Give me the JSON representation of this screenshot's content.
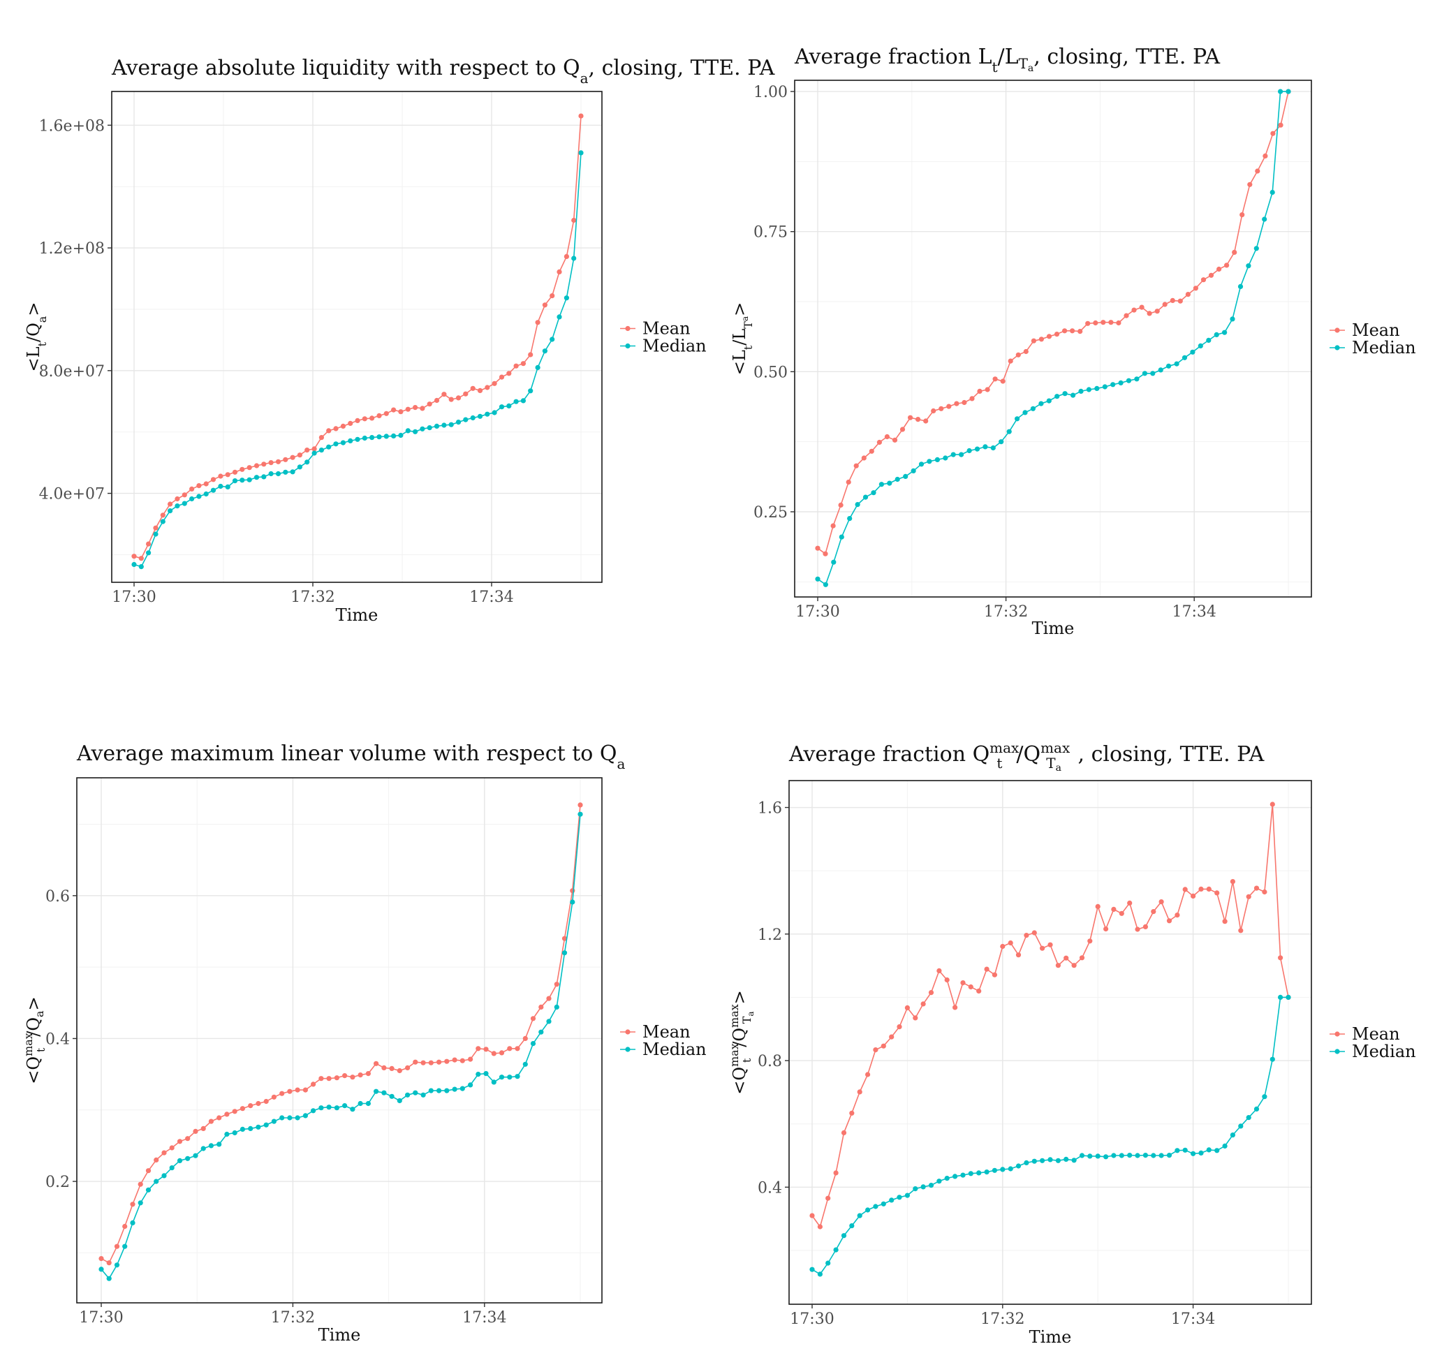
{
  "colors": {
    "mean": "#F8766D",
    "median": "#00BFC4"
  },
  "chart_data": [
    {
      "type": "line",
      "title": "Average absolute liquidity with respect to Q",
      "title_sub": "a",
      "title_rest": ", closing, TTE. PA",
      "xlabel": "Time",
      "ylabel": "<Lt/Qa>",
      "x_ticks": [
        "17:30",
        "17:32",
        "17:34"
      ],
      "y_ticks": [
        "4.0e+07",
        "8.0e+07",
        "1.2e+08",
        "1.6e+08"
      ],
      "y_tick_values": [
        40000000,
        80000000,
        120000000,
        160000000
      ],
      "ylim": [
        11000000,
        171000000
      ],
      "legend": [
        "Mean",
        "Median"
      ],
      "series": [
        {
          "name": "Mean",
          "values": [
            19500000,
            18800000,
            23500000,
            28700000,
            32900000,
            36500000,
            38200000,
            39500000,
            41400000,
            42500000,
            43100000,
            44500000,
            45600000,
            46100000,
            46900000,
            47800000,
            48400000,
            49000000,
            49500000,
            50000000,
            50300000,
            51000000,
            51700000,
            52500000,
            54100000,
            54500000,
            58200000,
            60400000,
            61100000,
            61900000,
            62800000,
            63700000,
            64300000,
            64500000,
            65300000,
            66000000,
            67200000,
            66600000,
            67400000,
            68000000,
            67700000,
            69100000,
            70300000,
            72300000,
            70600000,
            71100000,
            72400000,
            74200000,
            73500000,
            74500000,
            75800000,
            77900000,
            79100000,
            81500000,
            82300000,
            85200000,
            95700000,
            101400000,
            104400000,
            112200000,
            117200000,
            129000000,
            163000000
          ]
        },
        {
          "name": "Median",
          "values": [
            16800000,
            16100000,
            20600000,
            26700000,
            30800000,
            34300000,
            35900000,
            36700000,
            38200000,
            39000000,
            39800000,
            41000000,
            42300000,
            42100000,
            44100000,
            44300000,
            44400000,
            45200000,
            45400000,
            46400000,
            46400000,
            46900000,
            47000000,
            48600000,
            50200000,
            53100000,
            54100000,
            55100000,
            56100000,
            56500000,
            57100000,
            57600000,
            58000000,
            58200000,
            58400000,
            58600000,
            58700000,
            58900000,
            60400000,
            60100000,
            61000000,
            61400000,
            61900000,
            62200000,
            62400000,
            63200000,
            64000000,
            64600000,
            65100000,
            65800000,
            66300000,
            68200000,
            68500000,
            69900000,
            70200000,
            73400000,
            81000000,
            86400000,
            90200000,
            97500000,
            103700000,
            116600000,
            151000000
          ]
        }
      ]
    },
    {
      "type": "line",
      "title": "Average fraction L",
      "title_sub": "t",
      "title_mid": "/L",
      "title_sub2": "T",
      "title_sub3": "a",
      "title_rest": ", closing, TTE. PA",
      "xlabel": "Time",
      "ylabel": "<Lt/LTa>",
      "x_ticks": [
        "17:30",
        "17:32",
        "17:34"
      ],
      "y_ticks": [
        "0.25",
        "0.50",
        "0.75",
        "1.00"
      ],
      "y_tick_values": [
        0.25,
        0.5,
        0.75,
        1.0
      ],
      "ylim": [
        0.098,
        1.02
      ],
      "legend": [
        "Mean",
        "Median"
      ],
      "series": [
        {
          "name": "Mean",
          "values": [
            0.185,
            0.175,
            0.225,
            0.262,
            0.303,
            0.332,
            0.346,
            0.358,
            0.374,
            0.384,
            0.378,
            0.397,
            0.418,
            0.415,
            0.412,
            0.43,
            0.434,
            0.438,
            0.443,
            0.445,
            0.452,
            0.465,
            0.468,
            0.487,
            0.483,
            0.519,
            0.53,
            0.536,
            0.555,
            0.558,
            0.563,
            0.567,
            0.573,
            0.573,
            0.572,
            0.586,
            0.587,
            0.588,
            0.588,
            0.587,
            0.6,
            0.61,
            0.615,
            0.604,
            0.608,
            0.62,
            0.627,
            0.626,
            0.638,
            0.649,
            0.664,
            0.672,
            0.683,
            0.69,
            0.713,
            0.78,
            0.834,
            0.858,
            0.885,
            0.925,
            0.94,
            1.0
          ]
        },
        {
          "name": "Median",
          "values": [
            0.13,
            0.12,
            0.16,
            0.205,
            0.238,
            0.263,
            0.276,
            0.284,
            0.299,
            0.301,
            0.308,
            0.313,
            0.323,
            0.335,
            0.34,
            0.343,
            0.346,
            0.352,
            0.352,
            0.359,
            0.362,
            0.366,
            0.364,
            0.375,
            0.393,
            0.416,
            0.427,
            0.434,
            0.443,
            0.448,
            0.456,
            0.461,
            0.458,
            0.465,
            0.468,
            0.47,
            0.473,
            0.477,
            0.48,
            0.484,
            0.487,
            0.497,
            0.497,
            0.503,
            0.51,
            0.514,
            0.525,
            0.535,
            0.546,
            0.556,
            0.566,
            0.57,
            0.594,
            0.652,
            0.689,
            0.72,
            0.772,
            0.82,
            1.0,
            1.0
          ]
        }
      ]
    },
    {
      "type": "line",
      "title": "Average maximum linear volume with respect to Q",
      "title_sub": "a",
      "title_rest": "",
      "xlabel": "Time",
      "ylabel": "<Qtmax/Qa>",
      "x_ticks": [
        "17:30",
        "17:32",
        "17:34"
      ],
      "y_ticks": [
        "0.2",
        "0.4",
        "0.6"
      ],
      "y_tick_values": [
        0.2,
        0.4,
        0.6
      ],
      "ylim": [
        0.03,
        0.765
      ],
      "legend": [
        "Mean",
        "Median"
      ],
      "series": [
        {
          "name": "Mean",
          "values": [
            0.092,
            0.086,
            0.109,
            0.137,
            0.168,
            0.196,
            0.215,
            0.23,
            0.24,
            0.247,
            0.256,
            0.26,
            0.27,
            0.274,
            0.284,
            0.289,
            0.294,
            0.298,
            0.302,
            0.306,
            0.309,
            0.312,
            0.318,
            0.323,
            0.326,
            0.328,
            0.328,
            0.336,
            0.344,
            0.344,
            0.345,
            0.348,
            0.346,
            0.349,
            0.351,
            0.365,
            0.359,
            0.358,
            0.355,
            0.359,
            0.367,
            0.366,
            0.366,
            0.367,
            0.368,
            0.37,
            0.369,
            0.371,
            0.386,
            0.385,
            0.379,
            0.38,
            0.386,
            0.386,
            0.4,
            0.428,
            0.444,
            0.456,
            0.476,
            0.54,
            0.607,
            0.727
          ]
        },
        {
          "name": "Median",
          "values": [
            0.077,
            0.064,
            0.083,
            0.109,
            0.142,
            0.17,
            0.188,
            0.2,
            0.208,
            0.219,
            0.229,
            0.232,
            0.236,
            0.246,
            0.25,
            0.252,
            0.266,
            0.268,
            0.273,
            0.274,
            0.276,
            0.279,
            0.284,
            0.289,
            0.289,
            0.289,
            0.292,
            0.299,
            0.303,
            0.304,
            0.303,
            0.306,
            0.301,
            0.309,
            0.309,
            0.326,
            0.324,
            0.319,
            0.313,
            0.321,
            0.324,
            0.321,
            0.327,
            0.327,
            0.327,
            0.329,
            0.33,
            0.335,
            0.35,
            0.351,
            0.339,
            0.346,
            0.346,
            0.347,
            0.364,
            0.393,
            0.409,
            0.424,
            0.444,
            0.52,
            0.591,
            0.714
          ]
        }
      ]
    },
    {
      "type": "line",
      "title": "Average fraction Q",
      "title_sup": "max",
      "title_sub": "t",
      "title_mid": "/Q",
      "title_sup2": "max",
      "title_sub2": "T",
      "title_sub3": "a",
      "title_rest": " , closing, TTE. PA",
      "xlabel": "Time",
      "ylabel": "<Qtmax/QTamax>",
      "x_ticks": [
        "17:30",
        "17:32",
        "17:34"
      ],
      "y_ticks": [
        "0.4",
        "0.8",
        "1.2",
        "1.6"
      ],
      "y_tick_values": [
        0.4,
        0.8,
        1.2,
        1.6
      ],
      "ylim": [
        0.03,
        1.685
      ],
      "legend": [
        "Mean",
        "Median"
      ],
      "series": [
        {
          "name": "Mean",
          "values": [
            0.31,
            0.275,
            0.365,
            0.445,
            0.572,
            0.634,
            0.701,
            0.756,
            0.834,
            0.846,
            0.875,
            0.907,
            0.967,
            0.935,
            0.979,
            1.015,
            1.084,
            1.055,
            0.968,
            1.046,
            1.033,
            1.02,
            1.089,
            1.071,
            1.161,
            1.172,
            1.134,
            1.196,
            1.204,
            1.155,
            1.166,
            1.101,
            1.124,
            1.101,
            1.125,
            1.178,
            1.287,
            1.216,
            1.278,
            1.265,
            1.298,
            1.215,
            1.223,
            1.271,
            1.302,
            1.242,
            1.26,
            1.341,
            1.32,
            1.342,
            1.342,
            1.33,
            1.24,
            1.366,
            1.211,
            1.318,
            1.345,
            1.333,
            1.61,
            1.125,
            1.0
          ]
        },
        {
          "name": "Median",
          "values": [
            0.14,
            0.125,
            0.16,
            0.202,
            0.247,
            0.278,
            0.31,
            0.328,
            0.339,
            0.347,
            0.359,
            0.368,
            0.374,
            0.395,
            0.401,
            0.406,
            0.419,
            0.428,
            0.434,
            0.438,
            0.443,
            0.445,
            0.448,
            0.453,
            0.456,
            0.458,
            0.467,
            0.477,
            0.482,
            0.484,
            0.487,
            0.484,
            0.488,
            0.485,
            0.5,
            0.498,
            0.498,
            0.496,
            0.5,
            0.5,
            0.501,
            0.5,
            0.501,
            0.5,
            0.5,
            0.501,
            0.516,
            0.517,
            0.506,
            0.508,
            0.518,
            0.516,
            0.53,
            0.565,
            0.593,
            0.62,
            0.647,
            0.686,
            0.804,
            1.0,
            1.0
          ]
        }
      ]
    }
  ]
}
